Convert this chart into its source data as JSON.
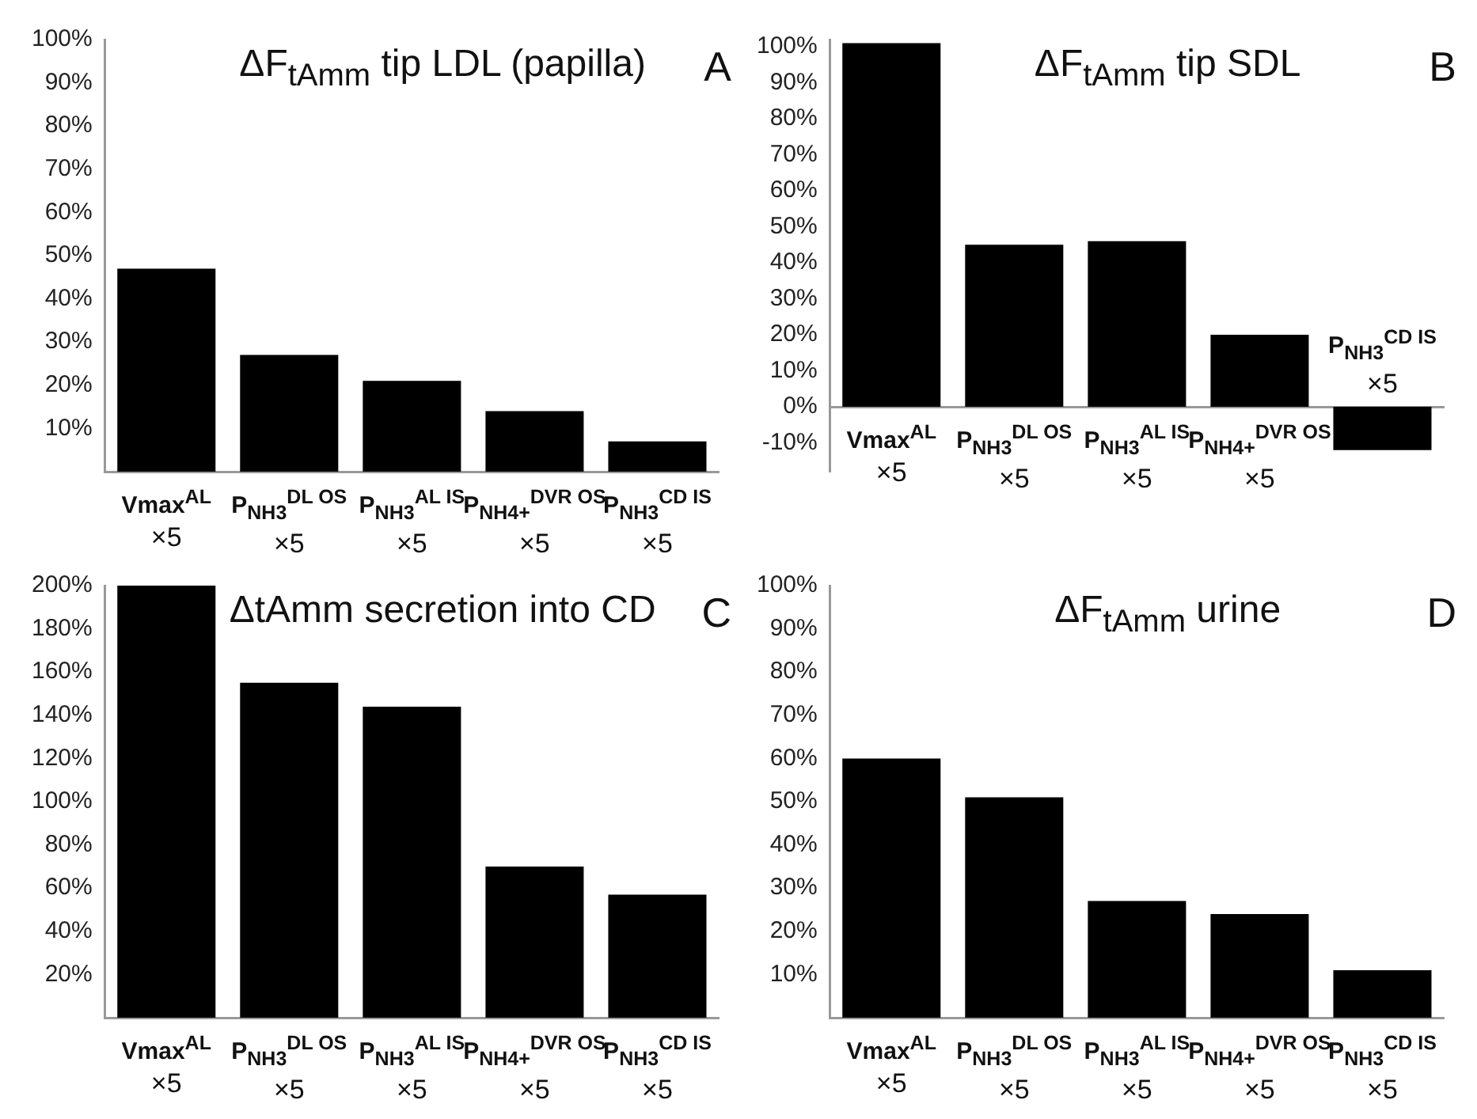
{
  "chart_data": [
    {
      "type": "bar",
      "title": "ΔF$_{tAmm}$ tip LDL (papilla)",
      "annotations": [
        "A"
      ],
      "categories": [
        "Vmax$^{AL}$\n×5",
        "P$_{NH3}$$^{DL OS}$\n×5",
        "P$_{NH3}$$^{AL IS}$\n×5",
        "P$_{NH4+}$$^{DVR OS}$\n×5",
        "P$_{NH3}$$^{CD IS}$\n×5"
      ],
      "values": [
        47,
        27,
        21,
        14,
        7
      ],
      "color": "#000000",
      "ylim": [
        0,
        100
      ],
      "yticks": [
        {
          "value": 10,
          "label": "10%"
        },
        {
          "value": 20,
          "label": "20%"
        },
        {
          "value": 30,
          "label": "30%"
        },
        {
          "value": 40,
          "label": "40%"
        },
        {
          "value": 50,
          "label": "50%"
        },
        {
          "value": 60,
          "label": "60%"
        },
        {
          "value": 70,
          "label": "70%"
        },
        {
          "value": 80,
          "label": "80%"
        },
        {
          "value": 90,
          "label": "90%"
        },
        {
          "value": 100,
          "label": "100%"
        }
      ],
      "grid": false,
      "legend": false
    },
    {
      "type": "bar",
      "title": "ΔF$_{tAmm}$ tip SDL",
      "annotations": [
        "B"
      ],
      "categories": [
        "Vmax$^{AL}$\n×5",
        "P$_{NH3}$$^{DL OS}$\n×5",
        "P$_{NH3}$$^{AL IS}$\n×5",
        "P$_{NH4+}$$^{DVR OS}$\n×5",
        "P$_{NH3}$$^{CD IS}$\n×5"
      ],
      "values": [
        101,
        45,
        46,
        20,
        -12
      ],
      "color": "#000000",
      "ylim": [
        -18,
        102
      ],
      "yticks": [
        {
          "value": -10,
          "label": "-10%"
        },
        {
          "value": 0,
          "label": "0%"
        },
        {
          "value": 10,
          "label": "10%"
        },
        {
          "value": 20,
          "label": "20%"
        },
        {
          "value": 30,
          "label": "30%"
        },
        {
          "value": 40,
          "label": "40%"
        },
        {
          "value": 50,
          "label": "50%"
        },
        {
          "value": 60,
          "label": "60%"
        },
        {
          "value": 70,
          "label": "70%"
        },
        {
          "value": 80,
          "label": "80%"
        },
        {
          "value": 90,
          "label": "90%"
        },
        {
          "value": 100,
          "label": "100%"
        }
      ],
      "grid": false,
      "legend": false
    },
    {
      "type": "bar",
      "title": "ΔtAmm secretion into CD",
      "annotations": [
        "C"
      ],
      "categories": [
        "Vmax$^{AL}$\n×5",
        "P$_{NH3}$$^{DL OS}$\n×5",
        "P$_{NH3}$$^{AL IS}$\n×5",
        "P$_{NH4+}$$^{DVR OS}$\n×5",
        "P$_{NH3}$$^{CD IS}$\n×5"
      ],
      "values": [
        200,
        155,
        144,
        70,
        57
      ],
      "color": "#000000",
      "ylim": [
        0,
        200
      ],
      "yticks": [
        {
          "value": 20,
          "label": "20%"
        },
        {
          "value": 40,
          "label": "40%"
        },
        {
          "value": 60,
          "label": "60%"
        },
        {
          "value": 80,
          "label": "80%"
        },
        {
          "value": 100,
          "label": "100%"
        },
        {
          "value": 120,
          "label": "120%"
        },
        {
          "value": 140,
          "label": "140%"
        },
        {
          "value": 160,
          "label": "160%"
        },
        {
          "value": 180,
          "label": "180%"
        },
        {
          "value": 200,
          "label": "200%"
        }
      ],
      "grid": false,
      "legend": false
    },
    {
      "type": "bar",
      "title": "ΔF$_{tAmm}$ urine",
      "annotations": [
        "D"
      ],
      "categories": [
        "Vmax$^{AL}$\n×5",
        "P$_{NH3}$$^{DL OS}$\n×5",
        "P$_{NH3}$$^{AL IS}$\n×5",
        "P$_{NH4+}$$^{DVR OS}$\n×5",
        "P$_{NH3}$$^{CD IS}$\n×5"
      ],
      "values": [
        60,
        51,
        27,
        24,
        11
      ],
      "color": "#000000",
      "ylim": [
        0,
        100
      ],
      "yticks": [
        {
          "value": 10,
          "label": "10%"
        },
        {
          "value": 20,
          "label": "20%"
        },
        {
          "value": 30,
          "label": "30%"
        },
        {
          "value": 40,
          "label": "40%"
        },
        {
          "value": 50,
          "label": "50%"
        },
        {
          "value": 60,
          "label": "60%"
        },
        {
          "value": 70,
          "label": "70%"
        },
        {
          "value": 80,
          "label": "80%"
        },
        {
          "value": 90,
          "label": "90%"
        },
        {
          "value": 100,
          "label": "100%"
        }
      ],
      "grid": false,
      "legend": false
    }
  ]
}
